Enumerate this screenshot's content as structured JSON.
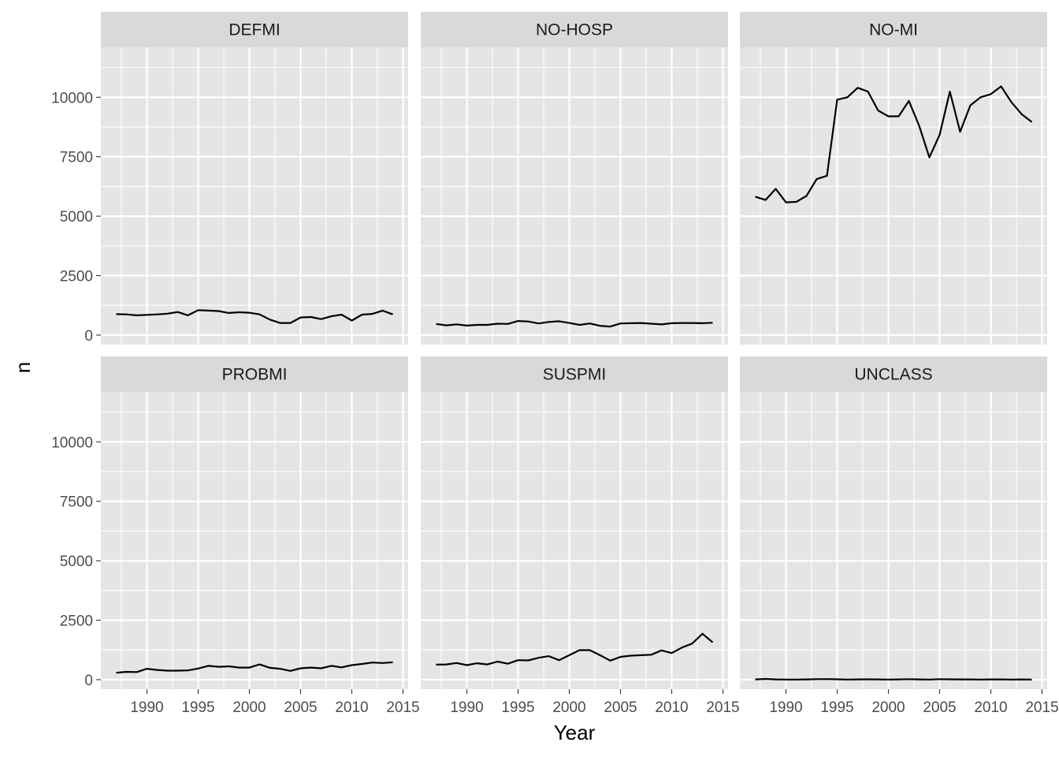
{
  "chart_data": {
    "type": "line",
    "layout": "facet-grid 2x3",
    "xlabel": "Year",
    "ylabel": "n",
    "xlim": [
      1985.5,
      2015.5
    ],
    "ylim": [
      -400,
      12100
    ],
    "xticks": [
      1990,
      1995,
      2000,
      2005,
      2010,
      2015
    ],
    "yticks": [
      0,
      2500,
      5000,
      7500,
      10000
    ],
    "x": [
      1987,
      1988,
      1989,
      1990,
      1991,
      1992,
      1993,
      1994,
      1995,
      1996,
      1997,
      1998,
      1999,
      2000,
      2001,
      2002,
      2003,
      2004,
      2005,
      2006,
      2007,
      2008,
      2009,
      2010,
      2011,
      2012,
      2013,
      2014
    ],
    "grid": true,
    "colors": {
      "panel_bg": "#e5e5e5",
      "strip_bg": "#d9d9d9",
      "grid": "#ffffff",
      "line": "#000000"
    },
    "panels": [
      {
        "name": "DEFMI",
        "values": [
          880,
          870,
          830,
          850,
          870,
          900,
          970,
          830,
          1050,
          1030,
          1010,
          930,
          960,
          940,
          870,
          650,
          510,
          510,
          740,
          760,
          670,
          790,
          860,
          610,
          860,
          890,
          1030,
          870
        ]
      },
      {
        "name": "NO-HOSP",
        "values": [
          470,
          410,
          450,
          400,
          430,
          430,
          480,
          470,
          590,
          570,
          490,
          550,
          580,
          510,
          430,
          490,
          390,
          360,
          490,
          500,
          510,
          480,
          450,
          500,
          510,
          510,
          500,
          520
        ]
      },
      {
        "name": "NO-MI",
        "values": [
          5820,
          5680,
          6150,
          5580,
          5600,
          5850,
          6560,
          6700,
          9900,
          10000,
          10400,
          10240,
          9440,
          9200,
          9200,
          9850,
          8800,
          7470,
          8420,
          10240,
          8550,
          9660,
          10000,
          10130,
          10460,
          9800,
          9290,
          8960
        ]
      },
      {
        "name": "PROBMI",
        "values": [
          290,
          330,
          320,
          460,
          410,
          380,
          380,
          390,
          470,
          580,
          540,
          560,
          510,
          510,
          640,
          500,
          460,
          370,
          480,
          510,
          480,
          580,
          520,
          610,
          660,
          720,
          700,
          730
        ]
      },
      {
        "name": "SUSPMI",
        "values": [
          630,
          640,
          700,
          610,
          690,
          640,
          760,
          670,
          820,
          810,
          920,
          990,
          820,
          1030,
          1240,
          1240,
          1030,
          800,
          960,
          1010,
          1030,
          1050,
          1230,
          1120,
          1350,
          1520,
          1930,
          1570
        ]
      },
      {
        "name": "UNCLASS",
        "values": [
          10,
          30,
          10,
          5,
          5,
          10,
          20,
          25,
          15,
          5,
          10,
          15,
          10,
          5,
          10,
          20,
          10,
          5,
          20,
          15,
          10,
          10,
          5,
          10,
          10,
          5,
          10,
          5
        ]
      }
    ]
  }
}
